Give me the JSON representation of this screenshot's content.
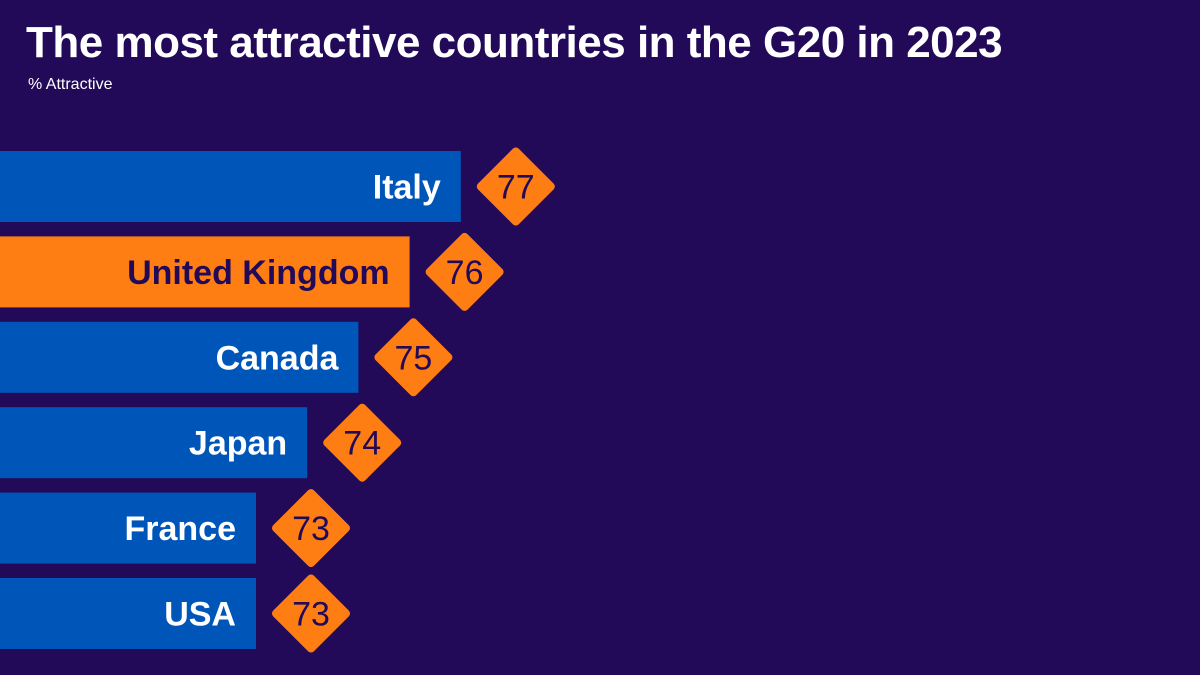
{
  "title": "The most attractive countries in the G20 in 2023",
  "subtitle": "% Attractive",
  "colors": {
    "background": "#230a59",
    "bar_default": "#0056b8",
    "bar_highlight": "#ff7e14",
    "badge": "#ff7e14",
    "label_default": "#ffffff",
    "label_highlight": "#230a59",
    "badge_text": "#230a59"
  },
  "chart_data": {
    "type": "bar",
    "orientation": "horizontal",
    "categories": [
      "Italy",
      "United Kingdom",
      "Canada",
      "Japan",
      "France",
      "USA"
    ],
    "values": [
      77,
      76,
      75,
      74,
      73,
      73
    ],
    "highlight": "United Kingdom",
    "value_format": "diamond-badge",
    "grid": false,
    "legend": "none"
  }
}
